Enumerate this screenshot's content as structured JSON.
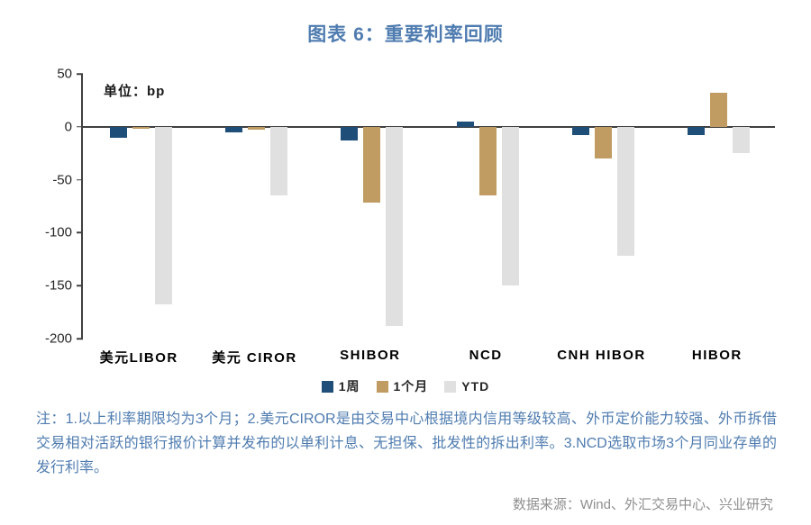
{
  "page": {
    "title": "图表 6：重要利率回顾",
    "unit_label": "单位：bp",
    "note": "注：1.以上利率期限均为3个月；2.美元CIROR是由交易中心根据境内信用等级较高、外币定价能力较强、外币拆借交易相对活跃的银行报价计算并发布的以单利计息、无担保、批发性的拆出利率。3.NCD选取市场3个月同业存单的发行利率。",
    "source": "数据来源：Wind、外汇交易中心、兴业研究"
  },
  "colors": {
    "title_blue": "#4f7cb0",
    "note_blue": "#4f7cb0",
    "source_gray": "#8f8f8f",
    "axis": "#404040"
  },
  "chart_data": {
    "type": "bar",
    "title": "图表 6：重要利率回顾",
    "unit": "bp",
    "categories": [
      "美元LIBOR",
      "美元 CIROR",
      "SHIBOR",
      "NCD",
      "CNH HIBOR",
      "HIBOR"
    ],
    "series": [
      {
        "name": "1周",
        "color": "#1f4e79",
        "values": [
          -10,
          -5,
          -13,
          5,
          -8,
          -8
        ]
      },
      {
        "name": "1个月",
        "color": "#c09c62",
        "values": [
          -2,
          -3,
          -72,
          -65,
          -30,
          32
        ]
      },
      {
        "name": "YTD",
        "color": "#e0e0e0",
        "values": [
          -168,
          -65,
          -188,
          -150,
          -122,
          -25
        ]
      }
    ],
    "ylim": [
      -200,
      50
    ],
    "yticks": [
      50,
      0,
      -50,
      -100,
      -150,
      -200
    ],
    "xlabel": "",
    "ylabel": "bp",
    "grid": false,
    "legend_position": "bottom"
  }
}
